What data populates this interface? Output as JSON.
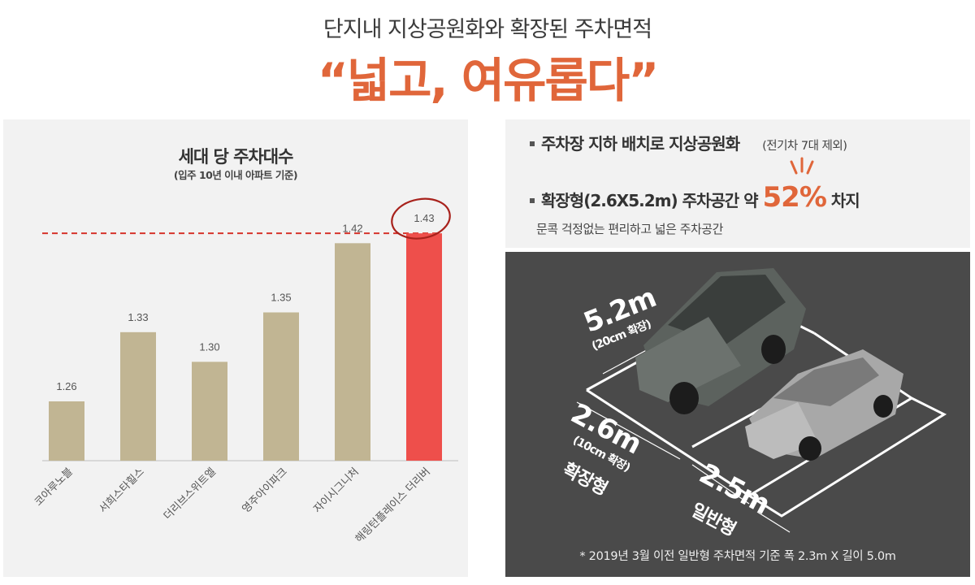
{
  "header": {
    "subtitle": "단지내 지상공원화와 확장된 주차면적",
    "headline": "“넓고, 여유롭다”"
  },
  "chart_data": {
    "type": "bar",
    "title": "세대 당 주차대수",
    "subtitle": "(입주 10년 이내 아파트 기준)",
    "categories": [
      "코아루노블",
      "서희스타힐스",
      "더리브스위트엘",
      "영주아이파크",
      "자이시그니처",
      "해링턴플레이스 더리버"
    ],
    "values": [
      1.26,
      1.33,
      1.3,
      1.35,
      1.42,
      1.43
    ],
    "value_labels": [
      "1.26",
      "1.33",
      "1.30",
      "1.35",
      "1.42",
      "1.43"
    ],
    "ylim": [
      1.2,
      1.44
    ],
    "reference_line": 1.43,
    "colors": {
      "bar": "#c1b593",
      "highlight": "#ee4f4b",
      "reference": "#d6342c"
    },
    "highlight_index": 5
  },
  "info": {
    "bullet1": "주차장 지하 배치로 지상공원화",
    "bullet1_note": "(전기차 7대 제외)",
    "bullet2_pre": "확장형(2.6X5.2m) 주차공간  약 ",
    "bullet2_pct": "52%",
    "bullet2_post": " 차지",
    "desc": "문콕 걱정없는 편리하고 넓은 주차공간"
  },
  "parking": {
    "length": "5.2m",
    "length_note": "(20cm 확장)",
    "wide_width": "2.6m",
    "wide_note": "(10cm 확장)",
    "wide_type": "확장형",
    "normal_width": "2.5m",
    "normal_type": "일반형",
    "footnote": "* 2019년 3월 이전 일반형 주차면적 기준 폭 2.3m X 길이 5.0m"
  }
}
